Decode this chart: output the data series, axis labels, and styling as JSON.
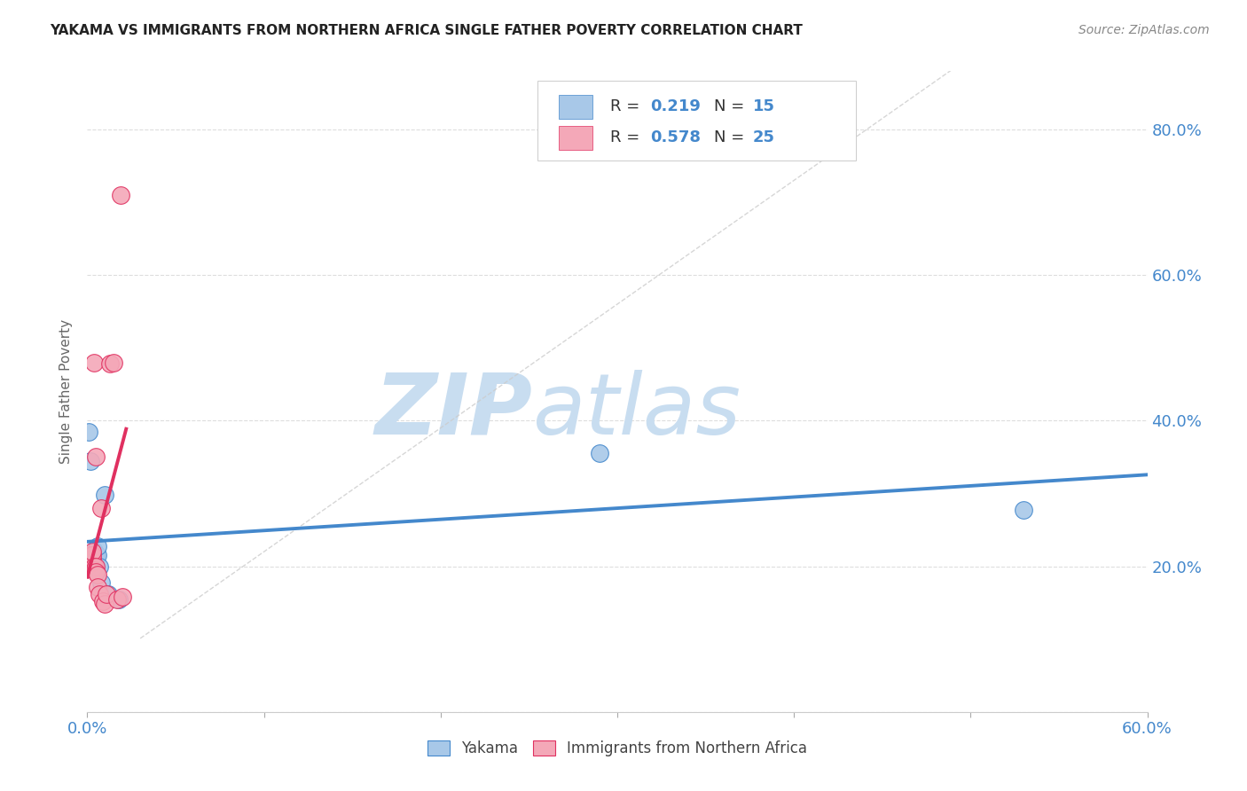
{
  "title": "YAKAMA VS IMMIGRANTS FROM NORTHERN AFRICA SINGLE FATHER POVERTY CORRELATION CHART",
  "source": "Source: ZipAtlas.com",
  "ylabel_label": "Single Father Poverty",
  "xlim": [
    0.0,
    0.6
  ],
  "ylim": [
    0.0,
    0.88
  ],
  "color_yakama": "#a8c8e8",
  "color_immigrants": "#f4a8b8",
  "color_line_yakama": "#4488cc",
  "color_line_immigrants": "#e03060",
  "color_dashed_line": "#cccccc",
  "watermark_zip": "ZIP",
  "watermark_atlas": "atlas",
  "watermark_color_zip": "#c8ddf0",
  "watermark_color_atlas": "#c8ddf0",
  "background_color": "#ffffff",
  "grid_color": "#dddddd",
  "yakama_points": [
    [
      0.001,
      0.385
    ],
    [
      0.002,
      0.345
    ],
    [
      0.003,
      0.215
    ],
    [
      0.004,
      0.222
    ],
    [
      0.005,
      0.215
    ],
    [
      0.005,
      0.195
    ],
    [
      0.006,
      0.215
    ],
    [
      0.006,
      0.228
    ],
    [
      0.007,
      0.2
    ],
    [
      0.008,
      0.178
    ],
    [
      0.01,
      0.298
    ],
    [
      0.012,
      0.162
    ],
    [
      0.018,
      0.155
    ],
    [
      0.29,
      0.355
    ],
    [
      0.53,
      0.278
    ]
  ],
  "immigrants_points": [
    [
      0.001,
      0.205
    ],
    [
      0.002,
      0.215
    ],
    [
      0.002,
      0.21
    ],
    [
      0.003,
      0.205
    ],
    [
      0.003,
      0.21
    ],
    [
      0.003,
      0.215
    ],
    [
      0.003,
      0.22
    ],
    [
      0.004,
      0.2
    ],
    [
      0.004,
      0.195
    ],
    [
      0.004,
      0.48
    ],
    [
      0.005,
      0.35
    ],
    [
      0.005,
      0.2
    ],
    [
      0.005,
      0.192
    ],
    [
      0.006,
      0.188
    ],
    [
      0.006,
      0.172
    ],
    [
      0.007,
      0.162
    ],
    [
      0.008,
      0.28
    ],
    [
      0.009,
      0.152
    ],
    [
      0.01,
      0.148
    ],
    [
      0.011,
      0.162
    ],
    [
      0.013,
      0.478
    ],
    [
      0.015,
      0.48
    ],
    [
      0.017,
      0.155
    ],
    [
      0.019,
      0.71
    ],
    [
      0.02,
      0.158
    ]
  ]
}
